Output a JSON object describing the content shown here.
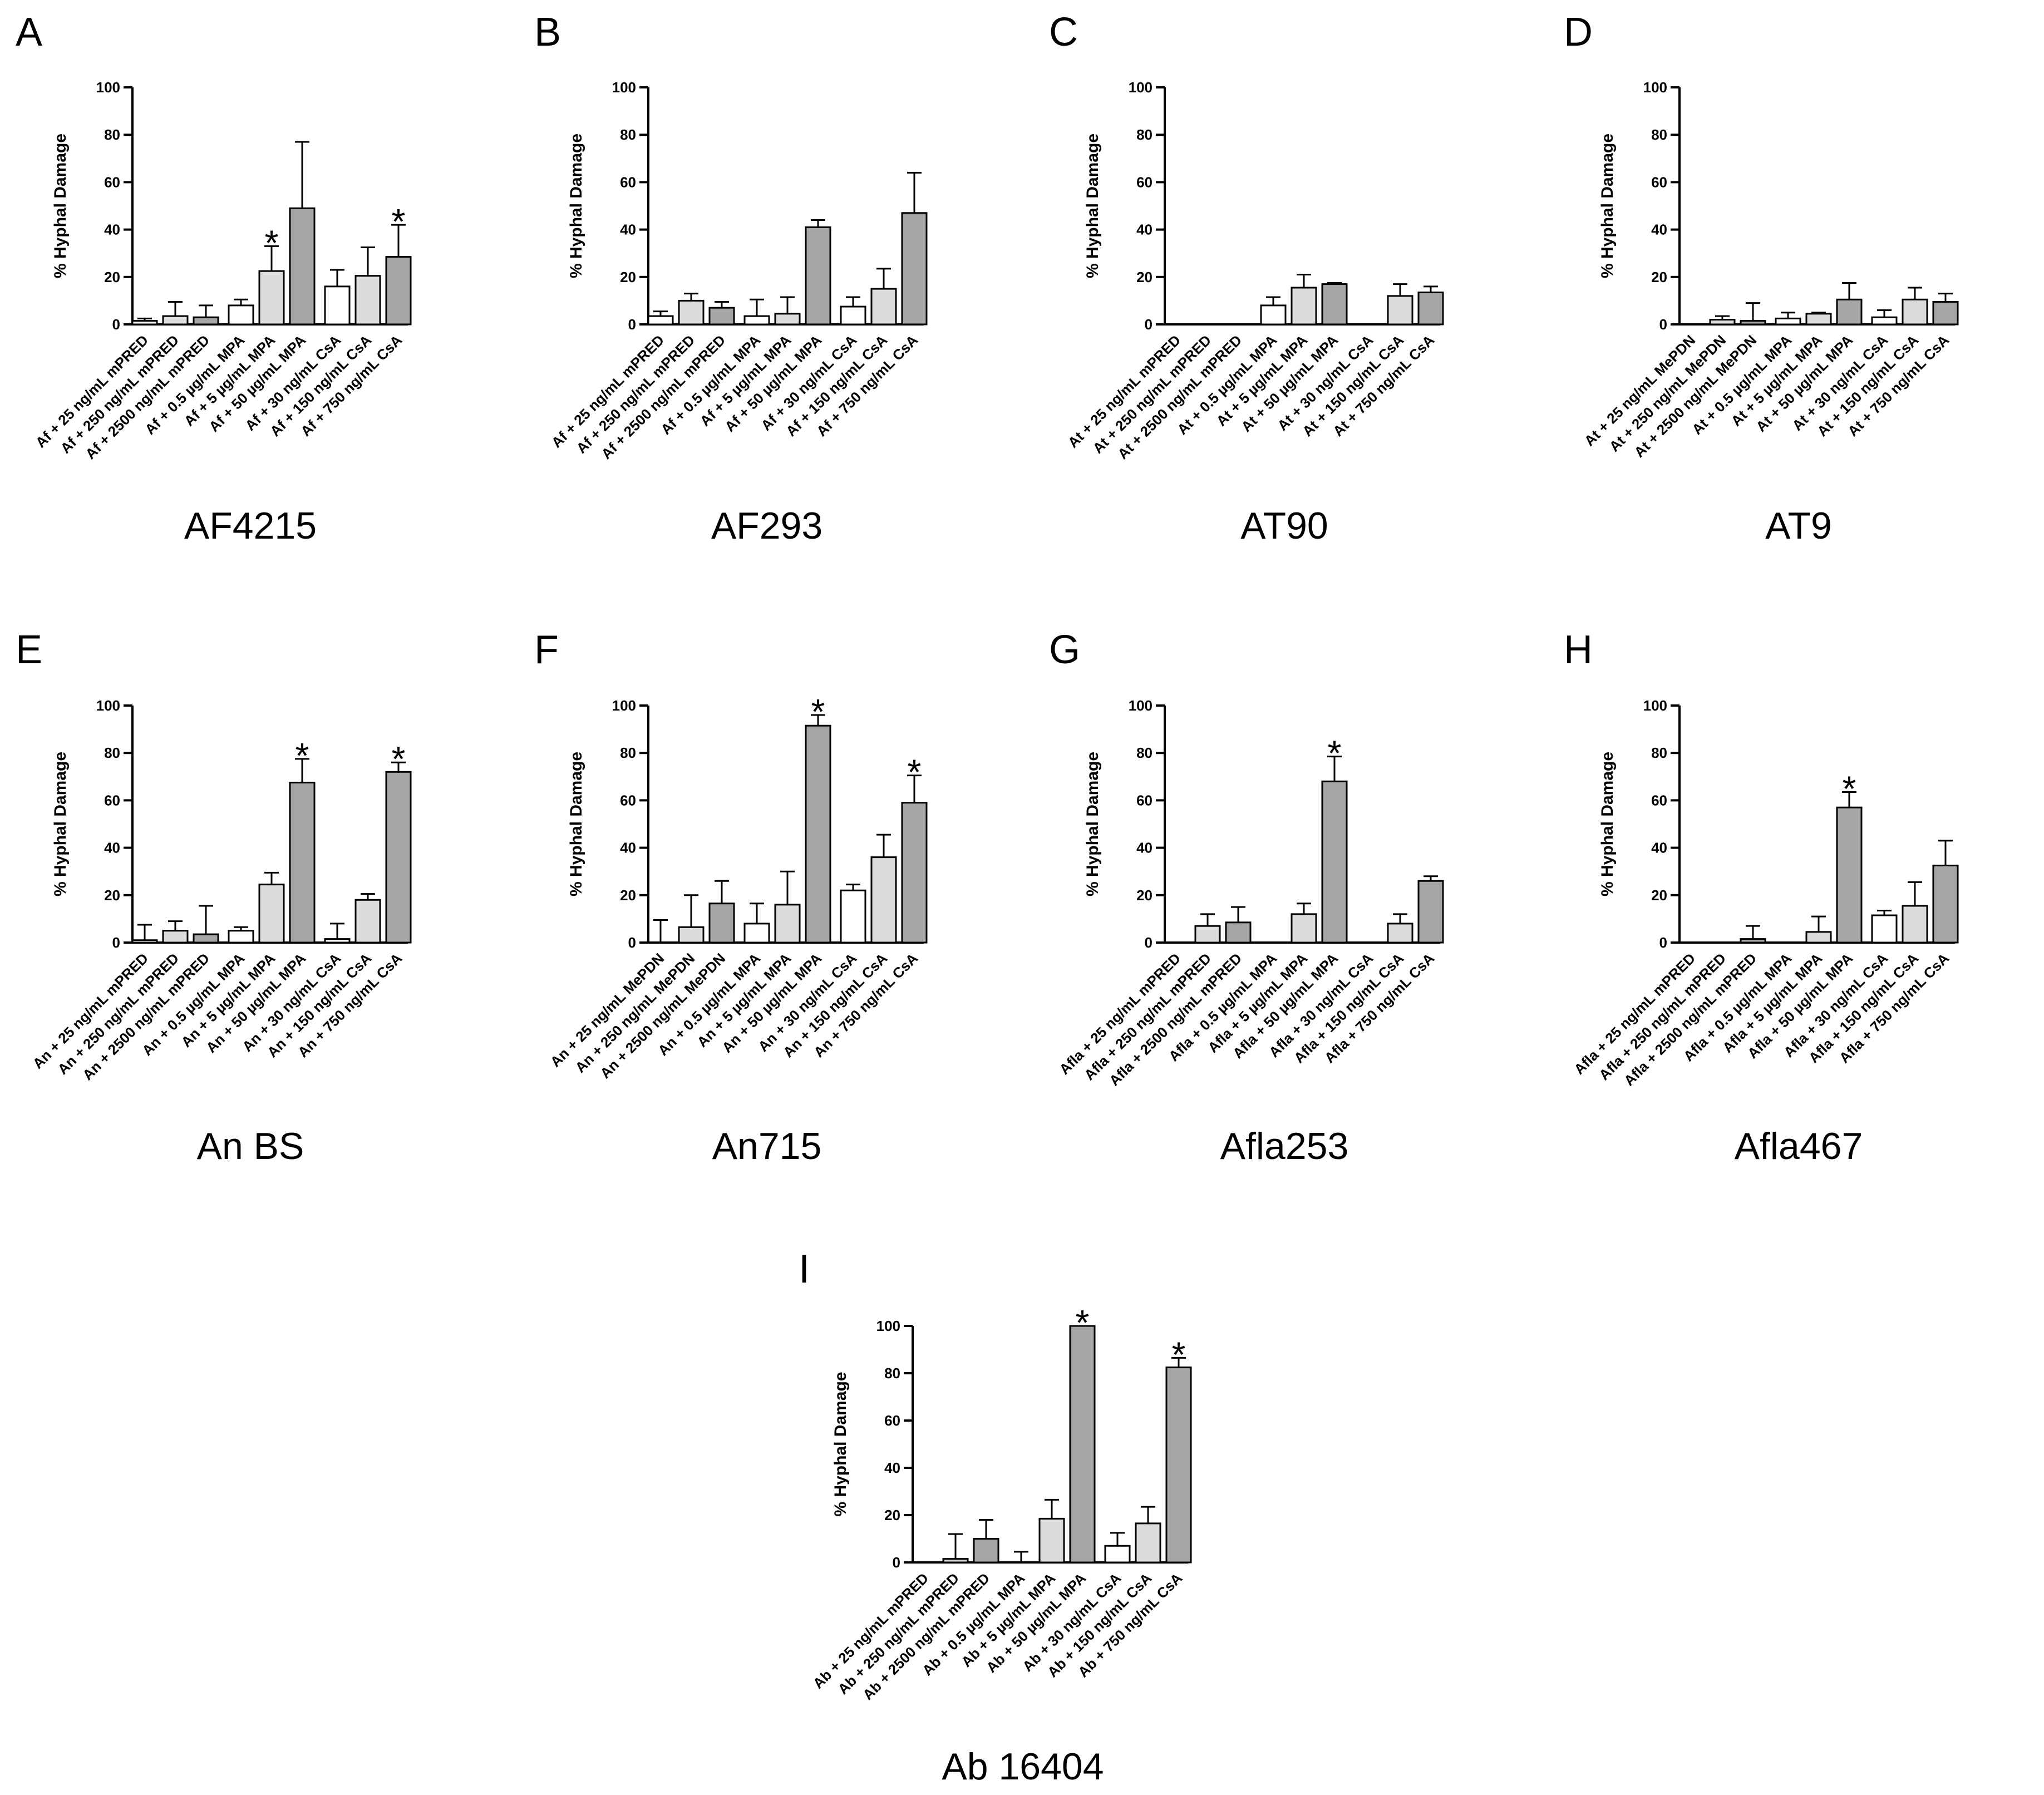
{
  "figure": {
    "ylabel": "% Hyphal Damage",
    "y_ticks": [
      "0",
      "20",
      "40",
      "60",
      "80",
      "100"
    ],
    "significance_marker": "*"
  },
  "chart_data": [
    {
      "type": "bar",
      "letter": "A",
      "title": "AF4215",
      "ylabel": "% Hyphal Damage",
      "ylim": [
        0,
        100
      ],
      "categories": [
        "Af + 25 ng/mL mPRED",
        "Af + 250 ng/mL mPRED",
        "Af + 2500 ng/mL mPRED",
        "Af + 0.5 µg/mL MPA",
        "Af + 5 µg/mL MPA",
        "Af + 50 µg/mL MPA",
        "Af + 30 ng/mL CsA",
        "Af + 150 ng/mL CsA",
        "Af + 750 ng/mL CsA"
      ],
      "values": [
        1.5,
        3.5,
        3,
        8,
        22.5,
        49,
        16,
        20.5,
        28.5
      ],
      "errors": [
        1,
        6,
        5,
        2.5,
        10.5,
        28,
        7,
        12,
        13.5
      ],
      "significant": [
        false,
        false,
        false,
        false,
        true,
        false,
        false,
        false,
        true
      ]
    },
    {
      "type": "bar",
      "letter": "B",
      "title": "AF293",
      "ylabel": "% Hyphal Damage",
      "ylim": [
        0,
        100
      ],
      "categories": [
        "Af + 25 ng/mL mPRED",
        "Af + 250 ng/mL mPRED",
        "Af + 2500 ng/mL mPRED",
        "Af + 0.5 µg/mL MPA",
        "Af + 5 µg/mL MPA",
        "Af + 50 µg/mL MPA",
        "Af + 30 ng/mL CsA",
        "Af + 150 ng/mL CsA",
        "Af + 750 ng/mL CsA"
      ],
      "values": [
        3.5,
        10,
        7,
        3.5,
        4.5,
        41,
        7.5,
        15,
        47
      ],
      "errors": [
        2,
        3,
        2.5,
        7,
        7,
        3,
        4,
        8.5,
        17
      ],
      "significant": [
        false,
        false,
        false,
        false,
        false,
        false,
        false,
        false,
        false
      ]
    },
    {
      "type": "bar",
      "letter": "C",
      "title": "AT90",
      "ylabel": "% Hyphal Damage",
      "ylim": [
        0,
        100
      ],
      "categories": [
        "At + 25 ng/mL mPRED",
        "At + 250 ng/mL mPRED",
        "At + 2500 ng/mL mPRED",
        "At + 0.5 µg/mL MPA",
        "At + 5 µg/mL MPA",
        "At + 50 µg/mL MPA",
        "At + 30 ng/mL CsA",
        "At + 150 ng/mL CsA",
        "At + 750 ng/mL CsA"
      ],
      "values": [
        0,
        0,
        0,
        8,
        15.5,
        17,
        0,
        12,
        13.5
      ],
      "errors": [
        0,
        0,
        0,
        3.5,
        5.5,
        0.5,
        0,
        5,
        2.5
      ],
      "significant": [
        false,
        false,
        false,
        false,
        false,
        false,
        false,
        false,
        false
      ]
    },
    {
      "type": "bar",
      "letter": "D",
      "title": "AT9",
      "ylabel": "% Hyphal Damage",
      "ylim": [
        0,
        100
      ],
      "categories": [
        "At + 25 ng/mL MePDN",
        "At + 250 ng/mL MePDN",
        "At + 2500 ng/mL MePDN",
        "At + 0.5 µg/mL MPA",
        "At + 5 µg/mL MPA",
        "At + 50 µg/mL MPA",
        "At + 30 ng/mL CsA",
        "At + 150 ng/mL CsA",
        "At + 750 ng/mL CsA"
      ],
      "values": [
        0,
        2,
        1.5,
        2.5,
        4.5,
        10.5,
        3,
        10.5,
        9.5
      ],
      "errors": [
        0,
        1.5,
        7.5,
        2.5,
        0.5,
        7,
        3,
        5,
        3.5
      ],
      "significant": [
        false,
        false,
        false,
        false,
        false,
        false,
        false,
        false,
        false
      ]
    },
    {
      "type": "bar",
      "letter": "E",
      "title": "An BS",
      "ylabel": "% Hyphal Damage",
      "ylim": [
        0,
        100
      ],
      "categories": [
        "An + 25 ng/mL mPRED",
        "An + 250 ng/mL mPRED",
        "An + 2500 ng/mL mPRED",
        "An + 0.5 µg/mL MPA",
        "An + 5 µg/mL MPA",
        "An + 50 µg/mL MPA",
        "An + 30 ng/mL CsA",
        "An + 150 ng/mL CsA",
        "An + 750 ng/mL CsA"
      ],
      "values": [
        1,
        5,
        3.5,
        5,
        24.5,
        67.5,
        1.5,
        18,
        72
      ],
      "errors": [
        6.5,
        4,
        12,
        1.5,
        5,
        10,
        6.5,
        2.5,
        4
      ],
      "significant": [
        false,
        false,
        false,
        false,
        false,
        true,
        false,
        false,
        true
      ]
    },
    {
      "type": "bar",
      "letter": "F",
      "title": "An715",
      "ylabel": "% Hyphal Damage",
      "ylim": [
        0,
        100
      ],
      "categories": [
        "An + 25 ng/mL MePDN",
        "An + 250 ng/mL MePDN",
        "An + 2500 ng/mL MePDN",
        "An + 0.5 µg/mL MPA",
        "An + 5 µg/mL MPA",
        "An + 50 µg/mL MPA",
        "An + 30 ng/mL CsA",
        "An + 150 ng/mL CsA",
        "An + 750 ng/mL CsA"
      ],
      "values": [
        0,
        6.5,
        16.5,
        8,
        16,
        91.5,
        22,
        36,
        59
      ],
      "errors": [
        9.5,
        13.5,
        9.5,
        8.5,
        14,
        4.5,
        2.5,
        9.5,
        11.5
      ],
      "significant": [
        false,
        false,
        false,
        false,
        false,
        true,
        false,
        false,
        true
      ]
    },
    {
      "type": "bar",
      "letter": "G",
      "title": "Afla253",
      "ylabel": "% Hyphal Damage",
      "ylim": [
        0,
        100
      ],
      "categories": [
        "Afla + 25 ng/mL mPRED",
        "Afla + 250 ng/mL mPRED",
        "Afla + 2500 ng/mL mPRED",
        "Afla + 0.5 µg/mL MPA",
        "Afla + 5 µg/mL MPA",
        "Afla + 50 µg/mL MPA",
        "Afla + 30 ng/mL CsA",
        "Afla + 150 ng/mL CsA",
        "Afla + 750 ng/mL CsA"
      ],
      "values": [
        0,
        7,
        8.5,
        0,
        12,
        68,
        0,
        8,
        26
      ],
      "errors": [
        0,
        5,
        6.5,
        0,
        4.5,
        10.5,
        0,
        4,
        2
      ],
      "significant": [
        false,
        false,
        false,
        false,
        false,
        true,
        false,
        false,
        false
      ]
    },
    {
      "type": "bar",
      "letter": "H",
      "title": "Afla467",
      "ylabel": "% Hyphal Damage",
      "ylim": [
        0,
        100
      ],
      "categories": [
        "Afla + 25 ng/mL mPRED",
        "Afla + 250 ng/mL mPRED",
        "Afla + 2500 ng/mL mPRED",
        "Afla + 0.5 µg/mL MPA",
        "Afla + 5 µg/mL MPA",
        "Afla + 50 µg/mL MPA",
        "Afla + 30 ng/mL CsA",
        "Afla + 150 ng/mL CsA",
        "Afla + 750 ng/mL CsA"
      ],
      "values": [
        0,
        0,
        1.5,
        0,
        4.5,
        57,
        11.5,
        15.5,
        32.5
      ],
      "errors": [
        0,
        0,
        5.5,
        0,
        6.5,
        6.5,
        2,
        10,
        10.5
      ],
      "significant": [
        false,
        false,
        false,
        false,
        false,
        true,
        false,
        false,
        false
      ]
    },
    {
      "type": "bar",
      "letter": "I",
      "title": "Ab 16404",
      "ylabel": "% Hyphal Damage",
      "ylim": [
        0,
        100
      ],
      "categories": [
        "Ab + 25 ng/mL mPRED",
        "Ab + 250 ng/mL mPRED",
        "Ab + 2500 ng/mL mPRED",
        "Ab + 0.5 µg/mL MPA",
        "Ab + 5 µg/mL MPA",
        "Ab + 50 µg/mL MPA",
        "Ab + 30 ng/mL CsA",
        "Ab + 150 ng/mL CsA",
        "Ab + 750 ng/mL CsA"
      ],
      "values": [
        0,
        1.5,
        10,
        0,
        18.5,
        100,
        7,
        16.5,
        82.5
      ],
      "errors": [
        0,
        10.5,
        8,
        4.5,
        8,
        0,
        5.5,
        7,
        4
      ],
      "significant": [
        false,
        false,
        false,
        false,
        false,
        true,
        false,
        false,
        true
      ]
    }
  ]
}
